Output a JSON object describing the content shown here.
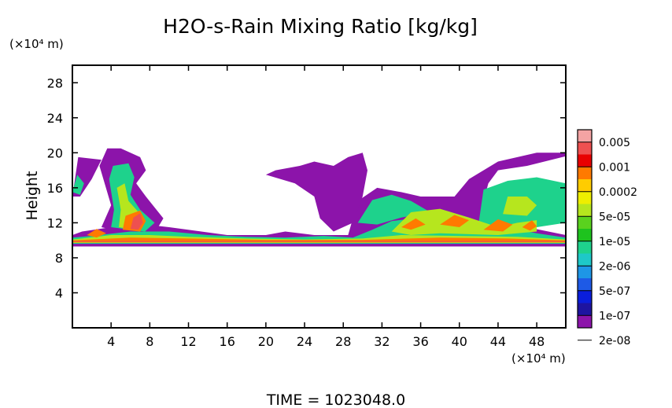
{
  "chart_data": {
    "type": "heatmap",
    "title": "H2O-s-Rain Mixing Ratio [kg/kg]",
    "ylabel": "Height",
    "xunit": "(×10⁴ m)",
    "yunit": "(×10⁴ m)",
    "footer": "TIME = 1023048.0",
    "xlim": [
      0,
      51
    ],
    "ylim": [
      0,
      30
    ],
    "xticks": [
      4,
      8,
      12,
      16,
      20,
      24,
      28,
      32,
      36,
      40,
      44,
      48
    ],
    "yticks": [
      4,
      8,
      12,
      16,
      20,
      24,
      28
    ],
    "colorbar": {
      "labels": [
        "0.005",
        "0.001",
        "0.0002",
        "5e-05",
        "1e-05",
        "2e-06",
        "5e-07",
        "1e-07",
        "2e-08"
      ],
      "colors": [
        "#f4a3a3",
        "#ee5050",
        "#e80000",
        "#ff7a00",
        "#ffcc00",
        "#eeee00",
        "#b6e61e",
        "#5ad21e",
        "#1ec31e",
        "#1ed28c",
        "#1ec8c8",
        "#1e96e6",
        "#1e5ae6",
        "#0a1edc",
        "#1e14a0",
        "#8c14aa"
      ]
    },
    "layers": [
      {
        "level": 0,
        "polygons": [
          [
            [
              0,
              9.3
            ],
            [
              51,
              9.3
            ],
            [
              51,
              10.6
            ],
            [
              47,
              11.5
            ],
            [
              44,
              12.5
            ],
            [
              42.5,
              14.5
            ],
            [
              43,
              16.5
            ],
            [
              44,
              18
            ],
            [
              47,
              18.5
            ],
            [
              51,
              19.6
            ],
            [
              51,
              20
            ],
            [
              48,
              20
            ],
            [
              44,
              19
            ],
            [
              41,
              17
            ],
            [
              39.5,
              15
            ],
            [
              36,
              15
            ],
            [
              34,
              15.5
            ],
            [
              31.5,
              16
            ],
            [
              29.5,
              14.5
            ],
            [
              28.5,
              10.6
            ],
            [
              25,
              10.6
            ],
            [
              22,
              11
            ],
            [
              20,
              10.6
            ],
            [
              16,
              10.6
            ],
            [
              10,
              11.5
            ],
            [
              6,
              12
            ],
            [
              4,
              11.5
            ],
            [
              1,
              11
            ],
            [
              0,
              10.6
            ]
          ],
          [
            [
              3,
              11.5
            ],
            [
              4,
              14
            ],
            [
              2.8,
              18.5
            ],
            [
              3.6,
              20.5
            ],
            [
              5,
              20.5
            ],
            [
              7,
              19.5
            ],
            [
              7.6,
              18
            ],
            [
              6.6,
              16.5
            ],
            [
              7.6,
              15
            ],
            [
              9.4,
              12.5
            ],
            [
              8.6,
              11
            ],
            [
              5,
              11
            ]
          ],
          [
            [
              0,
              15
            ],
            [
              0.6,
              19.5
            ],
            [
              3,
              19.2
            ],
            [
              2,
              17
            ],
            [
              0.8,
              15
            ]
          ],
          [
            [
              20,
              17.5
            ],
            [
              23,
              16.5
            ],
            [
              25,
              15
            ],
            [
              25.6,
              12.5
            ],
            [
              27,
              11
            ],
            [
              29,
              12
            ],
            [
              30,
              15
            ],
            [
              30.5,
              18
            ],
            [
              30,
              20
            ],
            [
              28.5,
              19.5
            ],
            [
              27,
              18.5
            ],
            [
              25,
              19
            ],
            [
              23.5,
              18.5
            ],
            [
              21,
              18
            ]
          ]
        ]
      },
      {
        "level": 6,
        "polygons": [
          [
            [
              0,
              9.6
            ],
            [
              51,
              9.6
            ],
            [
              51,
              10.3
            ],
            [
              48,
              10.8
            ],
            [
              45,
              11.5
            ],
            [
              42,
              12.2
            ],
            [
              39,
              12.8
            ],
            [
              36,
              12.6
            ],
            [
              33,
              12.2
            ],
            [
              31,
              11.2
            ],
            [
              29,
              10.3
            ],
            [
              26,
              10.5
            ],
            [
              22,
              10.3
            ],
            [
              18,
              10.4
            ],
            [
              14,
              10.6
            ],
            [
              10,
              11
            ],
            [
              6,
              11
            ],
            [
              2,
              10.5
            ],
            [
              0,
              10.3
            ]
          ],
          [
            [
              4,
              11.5
            ],
            [
              4.3,
              13.5
            ],
            [
              3.8,
              17
            ],
            [
              4.2,
              18.5
            ],
            [
              5.8,
              18.8
            ],
            [
              6.4,
              17.2
            ],
            [
              6,
              15.2
            ],
            [
              7,
              13.5
            ],
            [
              8.5,
              12
            ],
            [
              7.5,
              11
            ]
          ],
          [
            [
              0,
              15.5
            ],
            [
              0.5,
              17.5
            ],
            [
              1.2,
              16.5
            ],
            [
              0.8,
              15.2
            ]
          ],
          [
            [
              29.5,
              12
            ],
            [
              31,
              14.6
            ],
            [
              33,
              15.2
            ],
            [
              35,
              14.5
            ],
            [
              37,
              13.2
            ],
            [
              34,
              12.6
            ],
            [
              31.5,
              11.8
            ]
          ],
          [
            [
              42,
              12
            ],
            [
              42.5,
              15.8
            ],
            [
              45,
              16.8
            ],
            [
              48,
              17.2
            ],
            [
              51,
              16.5
            ],
            [
              51,
              12
            ],
            [
              48,
              11.5
            ],
            [
              45,
              11.5
            ]
          ]
        ]
      },
      {
        "level": 9,
        "polygons": [
          [
            [
              0,
              9.7
            ],
            [
              51,
              9.7
            ],
            [
              51,
              10.1
            ],
            [
              46,
              10.4
            ],
            [
              40,
              10.5
            ],
            [
              34,
              10.6
            ],
            [
              30,
              10.2
            ],
            [
              24,
              10.1
            ],
            [
              18,
              10.2
            ],
            [
              12,
              10.4
            ],
            [
              8,
              10.6
            ],
            [
              4,
              10.6
            ],
            [
              1,
              10.2
            ],
            [
              0,
              10.1
            ]
          ],
          [
            [
              4.8,
              11.5
            ],
            [
              5,
              13.5
            ],
            [
              4.6,
              16
            ],
            [
              5.4,
              16.5
            ],
            [
              5.8,
              14.5
            ],
            [
              7,
              13
            ],
            [
              6.5,
              11.2
            ]
          ],
          [
            [
              33,
              11
            ],
            [
              35,
              13.2
            ],
            [
              38,
              13.6
            ],
            [
              41,
              12.6
            ],
            [
              44,
              11.5
            ],
            [
              46,
              12
            ],
            [
              48,
              12.3
            ],
            [
              48,
              11
            ],
            [
              44,
              10.6
            ],
            [
              38,
              10.8
            ],
            [
              35,
              10.6
            ]
          ],
          [
            [
              44.5,
              13
            ],
            [
              45,
              15
            ],
            [
              47,
              15
            ],
            [
              48,
              14
            ],
            [
              47,
              12.8
            ]
          ]
        ]
      },
      {
        "level": 12,
        "polygons": [
          [
            [
              0,
              9.75
            ],
            [
              51,
              9.75
            ],
            [
              51,
              10.0
            ],
            [
              45,
              10.2
            ],
            [
              38,
              10.3
            ],
            [
              30,
              10.05
            ],
            [
              20,
              10.05
            ],
            [
              12,
              10.2
            ],
            [
              6,
              10.3
            ],
            [
              0,
              10.0
            ]
          ],
          [
            [
              5.2,
              11.2
            ],
            [
              5.5,
              12.8
            ],
            [
              7,
              13.4
            ],
            [
              7.6,
              12.2
            ],
            [
              7,
              11
            ]
          ],
          [
            [
              1.5,
              10.6
            ],
            [
              2.5,
              11.3
            ],
            [
              3.5,
              10.8
            ],
            [
              2.5,
              10.3
            ]
          ],
          [
            [
              34,
              11.5
            ],
            [
              35.5,
              12.5
            ],
            [
              36.5,
              11.8
            ],
            [
              35,
              11.2
            ]
          ],
          [
            [
              38,
              11.8
            ],
            [
              39.5,
              12.9
            ],
            [
              41,
              12.3
            ],
            [
              40,
              11.5
            ]
          ],
          [
            [
              42.5,
              11.2
            ],
            [
              44,
              12.4
            ],
            [
              45.5,
              11.8
            ],
            [
              44.5,
              11
            ]
          ],
          [
            [
              46.5,
              11.5
            ],
            [
              47.5,
              12.3
            ],
            [
              48,
              11.6
            ],
            [
              47.3,
              11.1
            ]
          ]
        ]
      },
      {
        "level": 14,
        "polygons": [
          [
            [
              0,
              9.82
            ],
            [
              51,
              9.82
            ],
            [
              51,
              9.92
            ],
            [
              0,
              9.92
            ]
          ],
          [
            [
              6,
              11.3
            ],
            [
              6.3,
              12.6
            ],
            [
              7,
              13.1
            ],
            [
              7.3,
              12
            ],
            [
              6.8,
              11.2
            ]
          ]
        ]
      }
    ]
  }
}
